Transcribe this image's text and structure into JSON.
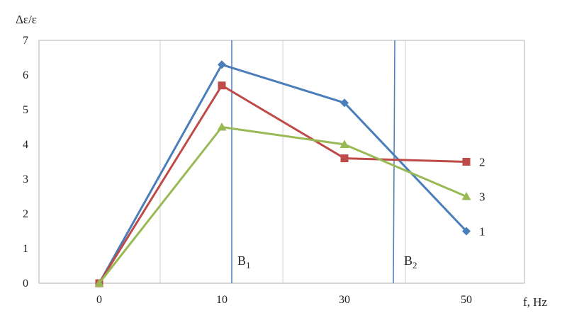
{
  "chart_data": {
    "type": "line",
    "ylabel": "Δε/ε",
    "xlabel": "f, Hz",
    "x": [
      0,
      10,
      30,
      50
    ],
    "ylim": [
      0,
      7
    ],
    "yticks": [
      0,
      1,
      2,
      3,
      4,
      5,
      6,
      7
    ],
    "grid": {
      "vertical": true,
      "horizontal": false
    },
    "series": [
      {
        "name": "1",
        "color": "#4A7EBB",
        "marker": "diamond",
        "values": [
          0,
          6.3,
          5.2,
          1.5
        ]
      },
      {
        "name": "2",
        "color": "#BE4B48",
        "marker": "square",
        "values": [
          0,
          5.7,
          3.6,
          3.5
        ]
      },
      {
        "name": "3",
        "color": "#98B954",
        "marker": "triangle",
        "values": [
          0,
          4.5,
          4.0,
          2.5
        ]
      }
    ],
    "markers": [
      {
        "base": "B",
        "sub": "1",
        "color": "#4A7EBB"
      },
      {
        "base": "B",
        "sub": "2",
        "color": "#4A7EBB"
      }
    ]
  }
}
